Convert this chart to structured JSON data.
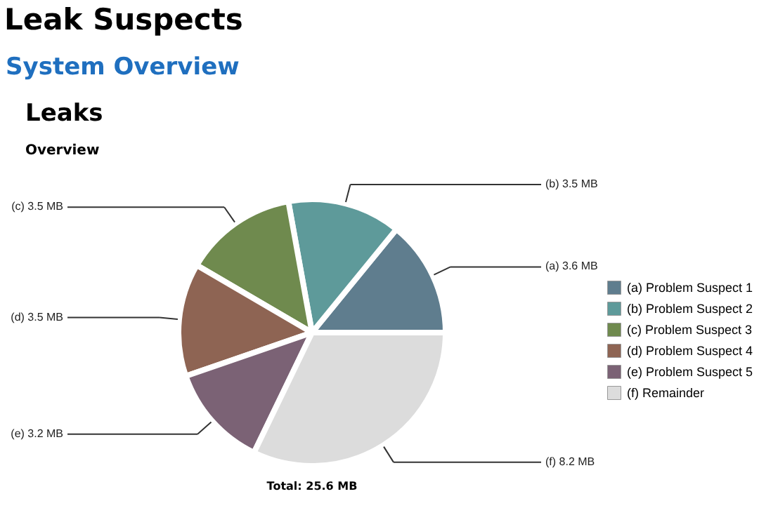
{
  "chart_data": {
    "type": "pie",
    "title": "Leak Suspects",
    "annotations": [
      "System Overview",
      "Leaks",
      "Overview",
      "Total: 25.6 MB"
    ],
    "categories": [
      "(a)  Problem Suspect 1",
      "(b)  Problem Suspect 2",
      "(c)  Problem Suspect 3",
      "(d)  Problem Suspect 4",
      "(e)  Problem Suspect 5",
      "(f)  Remainder"
    ],
    "values": [
      3.6,
      3.5,
      3.5,
      3.5,
      3.2,
      8.2
    ],
    "value_labels": [
      "(a)  3.6 MB",
      "(b)  3.5 MB",
      "(c)  3.5 MB",
      "(d)  3.5 MB",
      "(e)  3.2 MB",
      "(f)  8.2 MB"
    ],
    "colors": [
      "#5f7d8e",
      "#5e9a9a",
      "#6f8a4e",
      "#8e6453",
      "#7b6275",
      "#dcdcdc"
    ],
    "legend": "right"
  }
}
